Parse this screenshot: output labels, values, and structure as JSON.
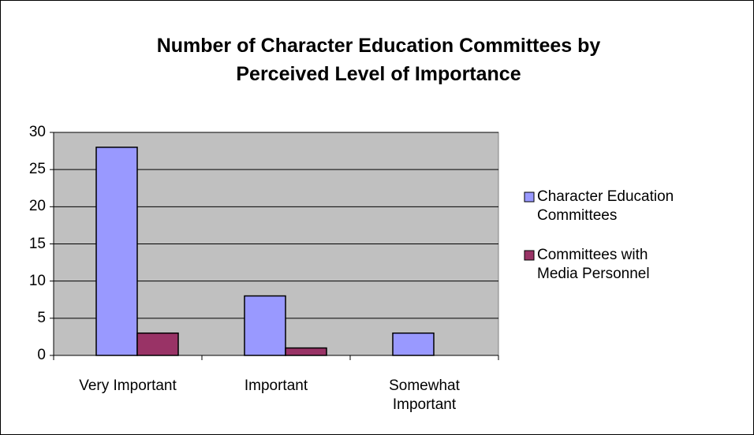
{
  "chart_data": {
    "type": "bar",
    "title": "Number of Character Education Committees by Perceived Level of Importance",
    "categories": [
      "Very Important",
      "Important",
      "Somewhat Important"
    ],
    "series": [
      {
        "name": "Character Education Committees",
        "color": "#9999ff",
        "values": [
          28,
          8,
          3
        ]
      },
      {
        "name": "Committees with Media Personnel",
        "color": "#993366",
        "values": [
          3,
          1,
          0
        ]
      }
    ],
    "ylim": [
      0,
      30
    ],
    "yticks": [
      0,
      5,
      10,
      15,
      20,
      25,
      30
    ],
    "grid": true,
    "legend": "right"
  }
}
